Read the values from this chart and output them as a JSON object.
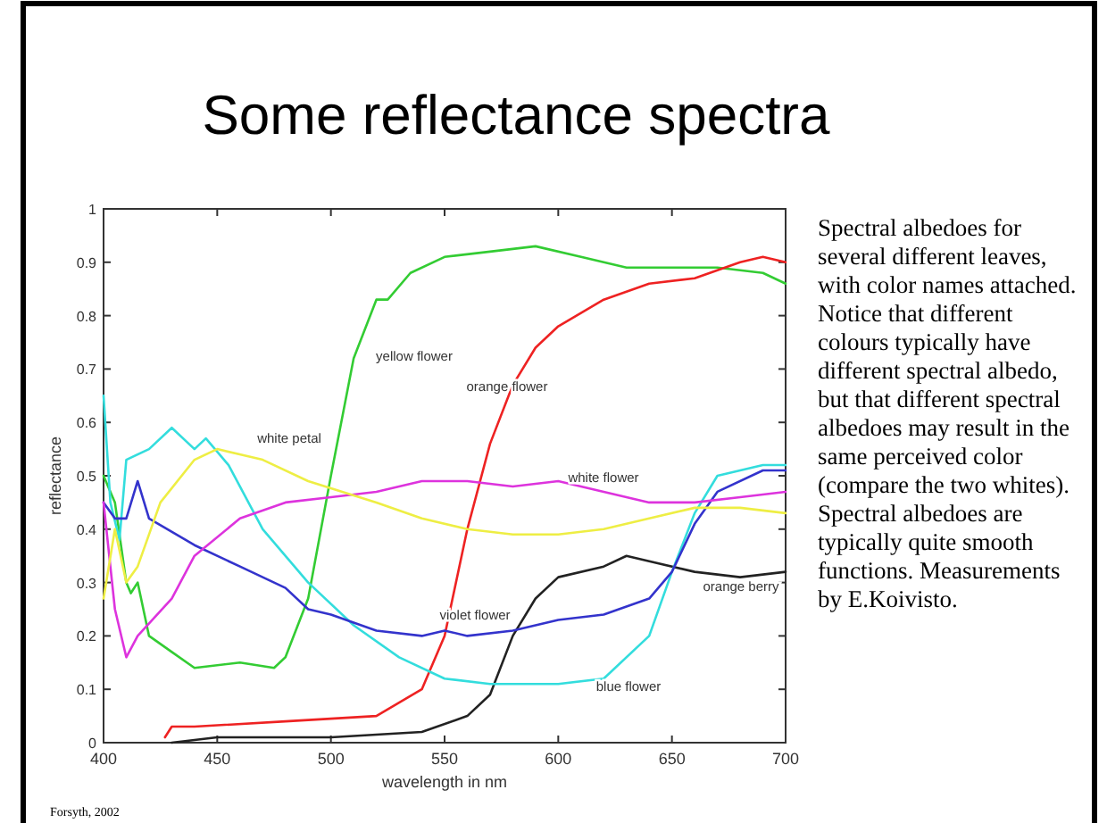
{
  "chart_data": {
    "type": "line",
    "title": "Some reflectance spectra",
    "xlabel": "wavelength in nm",
    "ylabel": "reflectance",
    "xlim": [
      400,
      700
    ],
    "xticks": [
      400,
      450,
      500,
      550,
      600,
      650,
      700
    ],
    "ylim": [
      0,
      1
    ],
    "yticks": [
      0,
      0.1,
      0.2,
      0.3,
      0.4,
      0.5,
      0.6,
      0.7,
      0.8,
      0.9,
      1
    ],
    "grid": false,
    "marker": "none",
    "line_style": "solid",
    "series": [
      {
        "name": "yellow flower",
        "color": "#33cc33",
        "x": [
          400,
          405,
          410,
          412,
          415,
          420,
          430,
          440,
          460,
          475,
          480,
          490,
          500,
          510,
          520,
          525,
          535,
          550,
          570,
          590,
          610,
          630,
          650,
          670,
          690,
          700
        ],
        "values": [
          0.5,
          0.45,
          0.3,
          0.28,
          0.3,
          0.2,
          0.17,
          0.14,
          0.15,
          0.14,
          0.16,
          0.27,
          0.5,
          0.72,
          0.83,
          0.83,
          0.88,
          0.91,
          0.92,
          0.93,
          0.91,
          0.89,
          0.89,
          0.89,
          0.88,
          0.86
        ]
      },
      {
        "name": "orange flower",
        "color": "#ee2222",
        "x": [
          427,
          430,
          440,
          480,
          520,
          540,
          550,
          560,
          570,
          580,
          590,
          600,
          620,
          640,
          660,
          680,
          690,
          700
        ],
        "values": [
          0.01,
          0.03,
          0.03,
          0.04,
          0.05,
          0.1,
          0.2,
          0.4,
          0.56,
          0.67,
          0.74,
          0.78,
          0.83,
          0.86,
          0.87,
          0.9,
          0.91,
          0.9
        ]
      },
      {
        "name": "orange berry",
        "color": "#222222",
        "x": [
          430,
          450,
          500,
          540,
          560,
          570,
          580,
          590,
          600,
          620,
          630,
          640,
          660,
          680,
          700
        ],
        "values": [
          0,
          0.01,
          0.01,
          0.02,
          0.05,
          0.09,
          0.2,
          0.27,
          0.31,
          0.33,
          0.35,
          0.34,
          0.32,
          0.31,
          0.32
        ]
      },
      {
        "name": "blue flower",
        "color": "#33dddd",
        "x": [
          400,
          403,
          407,
          410,
          420,
          430,
          440,
          445,
          455,
          470,
          490,
          510,
          530,
          550,
          570,
          600,
          620,
          640,
          650,
          660,
          670,
          690,
          700
        ],
        "values": [
          0.65,
          0.45,
          0.38,
          0.53,
          0.55,
          0.59,
          0.55,
          0.57,
          0.52,
          0.4,
          0.3,
          0.22,
          0.16,
          0.12,
          0.11,
          0.11,
          0.12,
          0.2,
          0.32,
          0.43,
          0.5,
          0.52,
          0.52
        ]
      },
      {
        "name": "violet flower",
        "color": "#3333cc",
        "x": [
          400,
          405,
          410,
          415,
          420,
          440,
          460,
          480,
          490,
          500,
          520,
          540,
          550,
          560,
          580,
          600,
          620,
          640,
          650,
          660,
          670,
          690,
          700
        ],
        "values": [
          0.45,
          0.42,
          0.42,
          0.49,
          0.42,
          0.37,
          0.33,
          0.29,
          0.25,
          0.24,
          0.21,
          0.2,
          0.21,
          0.2,
          0.21,
          0.23,
          0.24,
          0.27,
          0.32,
          0.41,
          0.47,
          0.51,
          0.51
        ]
      },
      {
        "name": "white flower",
        "color": "#dd33dd",
        "x": [
          400,
          405,
          410,
          415,
          430,
          440,
          460,
          480,
          500,
          520,
          540,
          560,
          580,
          600,
          620,
          640,
          660,
          680,
          700
        ],
        "values": [
          0.45,
          0.25,
          0.16,
          0.2,
          0.27,
          0.35,
          0.42,
          0.45,
          0.46,
          0.47,
          0.49,
          0.49,
          0.48,
          0.49,
          0.47,
          0.45,
          0.45,
          0.46,
          0.47
        ]
      },
      {
        "name": "white petal",
        "color": "#eeee44",
        "x": [
          400,
          405,
          410,
          415,
          425,
          440,
          450,
          470,
          490,
          520,
          540,
          560,
          580,
          600,
          620,
          640,
          660,
          680,
          700
        ],
        "values": [
          0.27,
          0.4,
          0.3,
          0.33,
          0.45,
          0.53,
          0.55,
          0.53,
          0.49,
          0.45,
          0.42,
          0.4,
          0.39,
          0.39,
          0.4,
          0.42,
          0.44,
          0.44,
          0.43
        ]
      }
    ],
    "annotations": [
      "Spectral albedoes for several different leaves, with color names attached.  Notice that different colours typically have different spectral albedo, but that different spectral albedoes may result in the same perceived color (compare the two whites).  Spectral albedoes are typically quite smooth functions. Measurements by E.Koivisto.",
      "Forsyth, 2002"
    ]
  }
}
